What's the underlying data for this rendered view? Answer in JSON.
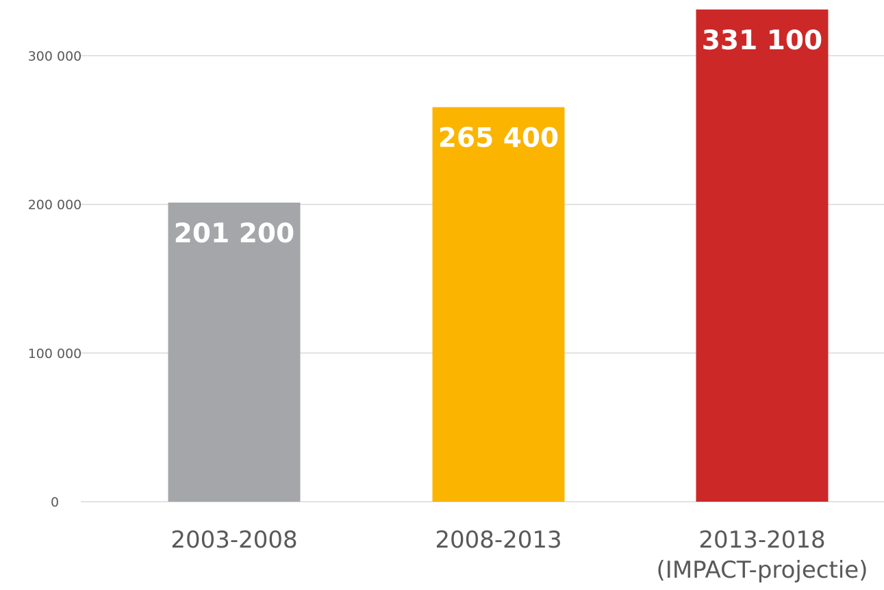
{
  "chart_data": {
    "type": "bar",
    "categories": [
      [
        "2003-2008"
      ],
      [
        "2008-2013"
      ],
      [
        "2013-2018",
        "(IMPACT-projectie)"
      ]
    ],
    "values": [
      201200,
      265400,
      331100
    ],
    "data_labels": [
      "201 200",
      "265 400",
      "331 100"
    ],
    "colors": [
      "#a5a6a9",
      "#fbb400",
      "#cc2828"
    ],
    "y_ticks": [
      0,
      100000,
      200000,
      300000
    ],
    "y_tick_labels": [
      "0",
      "100 000",
      "200 000",
      "300 000"
    ],
    "ylim": [
      0,
      330000
    ],
    "grid": true,
    "legend": "none",
    "title": "",
    "xlabel": "",
    "ylabel": ""
  }
}
